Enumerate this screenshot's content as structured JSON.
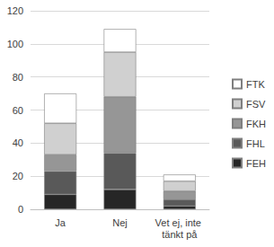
{
  "chart_data": {
    "type": "bar",
    "stacked": true,
    "grid": true,
    "legend": "right",
    "categories": [
      "Ja",
      "Nej",
      "Vet ej, inte tänkt på"
    ],
    "series": [
      {
        "name": "FEH",
        "color": "#262626",
        "values": [
          9,
          12,
          2
        ]
      },
      {
        "name": "FHL",
        "color": "#595959",
        "values": [
          14,
          22,
          4
        ]
      },
      {
        "name": "FKH",
        "color": "#969696",
        "values": [
          10,
          34,
          5
        ]
      },
      {
        "name": "FSV",
        "color": "#d0d0d0",
        "values": [
          19,
          27,
          6
        ]
      },
      {
        "name": "FTK",
        "color": "#ffffff",
        "values": [
          18,
          14,
          4
        ]
      }
    ],
    "ylim": [
      0,
      120
    ],
    "yticks": [
      0,
      20,
      40,
      60,
      80,
      100,
      120
    ]
  }
}
